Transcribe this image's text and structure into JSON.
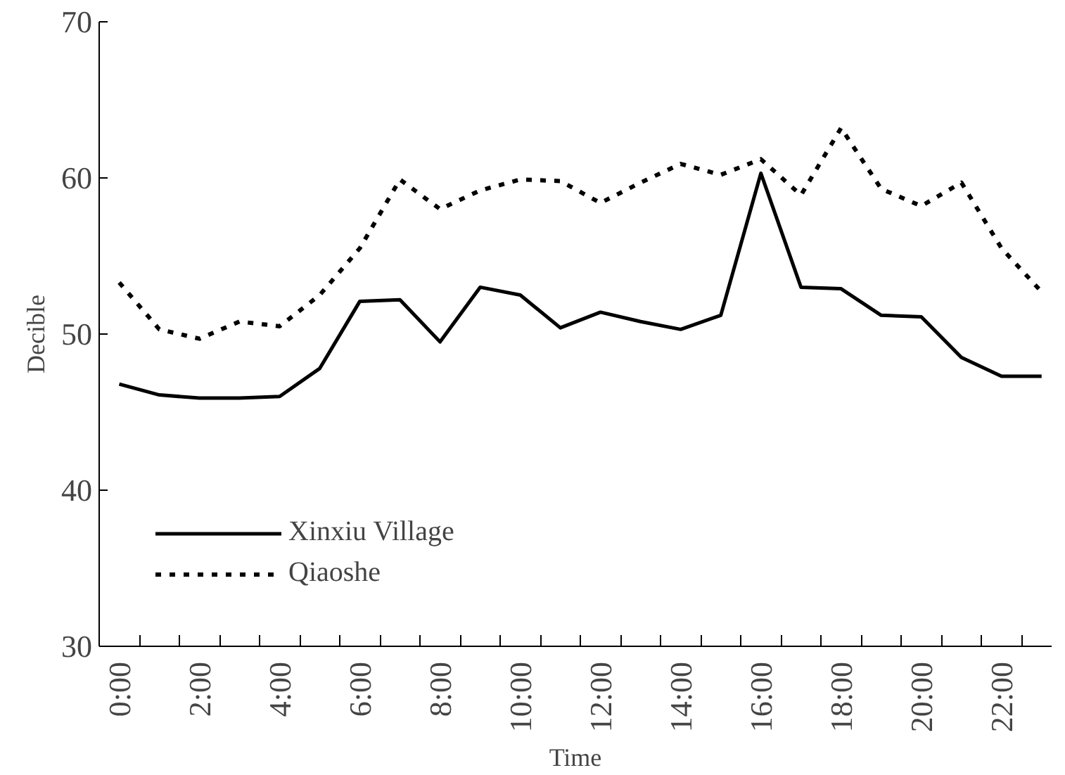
{
  "chart_data": {
    "type": "line",
    "xlabel": "Time",
    "ylabel": "Decible",
    "x": [
      0,
      1,
      2,
      3,
      4,
      5,
      6,
      7,
      8,
      9,
      10,
      11,
      12,
      13,
      14,
      15,
      16,
      17,
      18,
      19,
      20,
      21,
      22,
      23
    ],
    "xlim": [
      -0.5,
      23.25
    ],
    "xticks": [
      {
        "value": 0,
        "label": "0:00"
      },
      {
        "value": 2,
        "label": "2:00"
      },
      {
        "value": 4,
        "label": "4:00"
      },
      {
        "value": 6,
        "label": "6:00"
      },
      {
        "value": 8,
        "label": "8:00"
      },
      {
        "value": 10,
        "label": "10:00"
      },
      {
        "value": 12,
        "label": "12:00"
      },
      {
        "value": 14,
        "label": "14:00"
      },
      {
        "value": 16,
        "label": "16:00"
      },
      {
        "value": 18,
        "label": "18:00"
      },
      {
        "value": 20,
        "label": "20:00"
      },
      {
        "value": 22,
        "label": "22:00"
      },
      {
        "value": 0.5,
        "label": null
      },
      {
        "value": 1.5,
        "label": null
      },
      {
        "value": 2.5,
        "label": null
      },
      {
        "value": 3.5,
        "label": null
      },
      {
        "value": 4.5,
        "label": null
      },
      {
        "value": 5.5,
        "label": null
      },
      {
        "value": 6.5,
        "label": null
      },
      {
        "value": 7.5,
        "label": null
      },
      {
        "value": 8.5,
        "label": null
      },
      {
        "value": 9.5,
        "label": null
      },
      {
        "value": 10.5,
        "label": null
      },
      {
        "value": 11.5,
        "label": null
      },
      {
        "value": 12.5,
        "label": null
      },
      {
        "value": 13.5,
        "label": null
      },
      {
        "value": 14.5,
        "label": null
      },
      {
        "value": 15.5,
        "label": null
      },
      {
        "value": 16.5,
        "label": null
      },
      {
        "value": 17.5,
        "label": null
      },
      {
        "value": 18.5,
        "label": null
      },
      {
        "value": 19.5,
        "label": null
      },
      {
        "value": 20.5,
        "label": null
      },
      {
        "value": 21.5,
        "label": null
      },
      {
        "value": 22.5,
        "label": null
      }
    ],
    "ylim": [
      30,
      70
    ],
    "yticks": [
      30,
      40,
      50,
      60,
      70
    ],
    "grid": false,
    "legend": "bottom left",
    "marker": "none",
    "series": [
      {
        "name": "Xinxiu Village",
        "color": "#000000",
        "line_style": "solid",
        "values": [
          46.8,
          46.1,
          45.9,
          45.9,
          46.0,
          47.8,
          52.1,
          52.2,
          49.5,
          53.0,
          52.5,
          50.4,
          51.4,
          50.8,
          50.3,
          51.2,
          60.3,
          53.0,
          52.9,
          51.2,
          51.1,
          48.5,
          47.3,
          47.3
        ]
      },
      {
        "name": "Qiaoshe",
        "color": "#000000",
        "line_style": "dotted",
        "values": [
          53.3,
          50.3,
          49.7,
          50.8,
          50.5,
          52.5,
          55.5,
          59.9,
          58.0,
          59.2,
          59.9,
          59.8,
          58.4,
          59.7,
          60.9,
          60.2,
          61.2,
          58.9,
          63.2,
          59.3,
          58.2,
          59.7,
          55.5,
          52.7
        ]
      }
    ]
  }
}
